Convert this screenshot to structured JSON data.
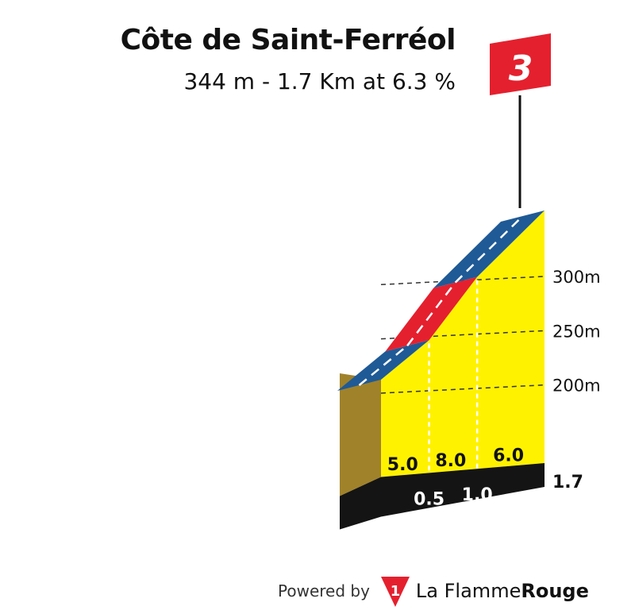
{
  "header": {
    "title": "Côte de Saint-Ferréol",
    "subtitle": "344 m - 1.7 Km at 6.3 %"
  },
  "category_flag": {
    "label": "3",
    "color": "#e5202e"
  },
  "chart_data": {
    "type": "area",
    "title": "Côte de Saint-Ferréol",
    "summit_altitude_m": 344,
    "length_km": 1.7,
    "avg_gradient_pct": 6.3,
    "category": "3",
    "segments": [
      {
        "start_km": 0.0,
        "end_km": 0.5,
        "gradient_pct": 5.0,
        "color": "#1f5a96"
      },
      {
        "start_km": 0.5,
        "end_km": 1.0,
        "gradient_pct": 8.0,
        "color": "#e5202e"
      },
      {
        "start_km": 1.0,
        "end_km": 1.7,
        "gradient_pct": 6.0,
        "color": "#1f5a96"
      }
    ],
    "elevation_ticks": [
      "300m",
      "250m",
      "200m"
    ],
    "elevation_tick_values": [
      300,
      250,
      200
    ],
    "distance_ticks": [
      "0.5",
      "1.0"
    ],
    "distance_tick_values": [
      0.5,
      1.0
    ],
    "end_label": "1.7",
    "gradient_labels": [
      "5.0",
      "8.0",
      "6.0"
    ],
    "colors": {
      "fill": "#fff200",
      "side": "#a0822a",
      "base": "#141414",
      "road": "#1f5a96",
      "road_steep": "#e5202e"
    }
  },
  "footer": {
    "powered_by": "Powered by",
    "brand_light": "La Flamme",
    "brand_bold": "Rouge",
    "logo_icon": "flamme-rouge-logo-icon"
  }
}
